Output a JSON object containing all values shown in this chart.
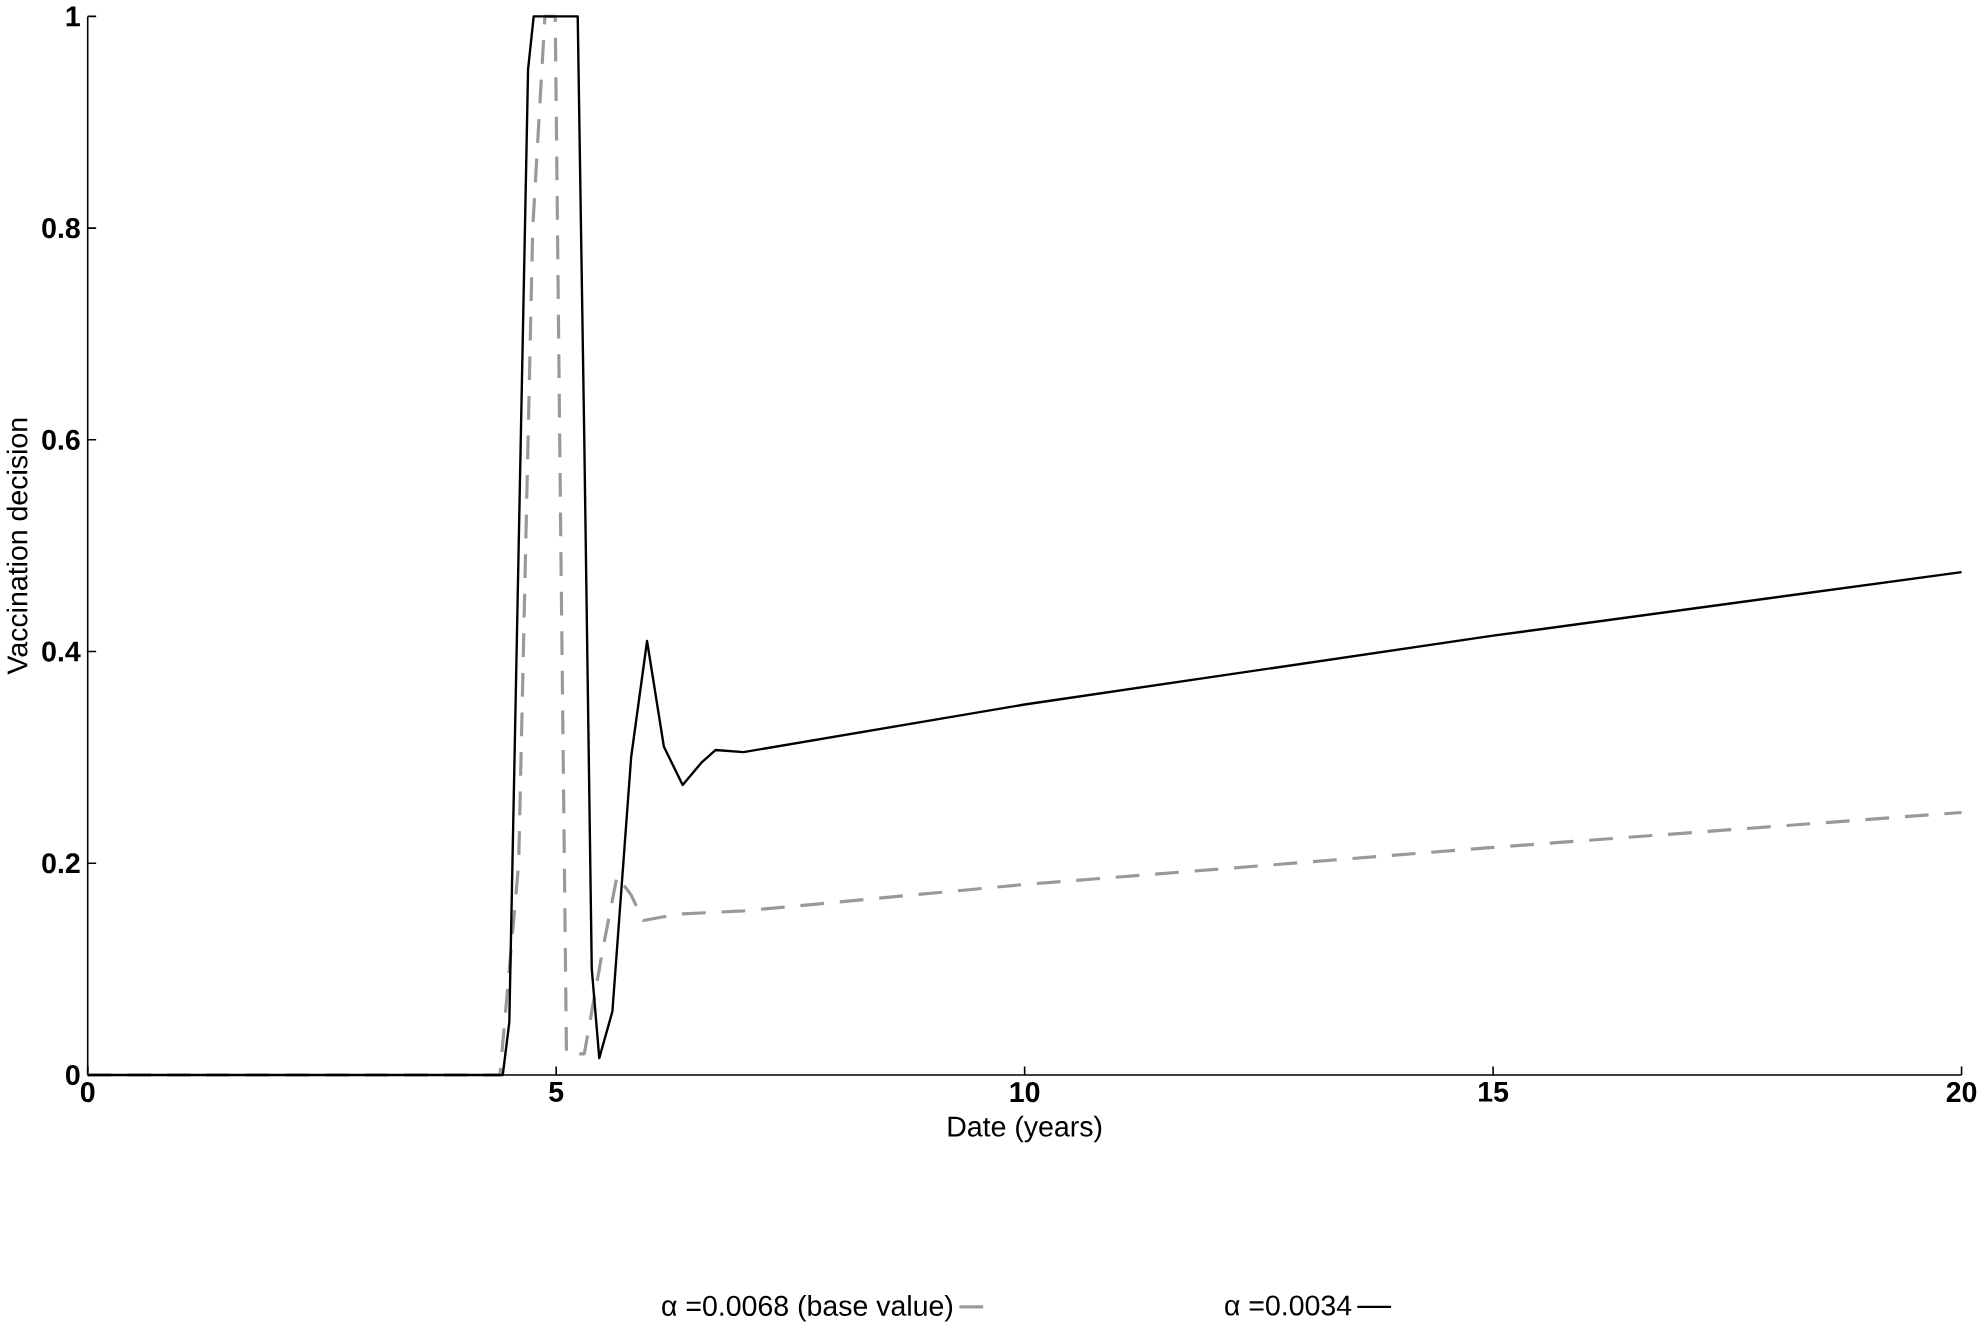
{
  "chart_data": {
    "type": "line",
    "xlabel": "Date (years)",
    "ylabel": "Vaccination decision",
    "xlim": [
      0,
      20
    ],
    "ylim": [
      0,
      1
    ],
    "xticks": [
      0,
      5,
      10,
      15,
      20
    ],
    "yticks": [
      0,
      0.2,
      0.4,
      0.6,
      0.8,
      1
    ],
    "grid": false,
    "legend": "bottom",
    "marker": "none",
    "series": [
      {
        "name": "α =0.0068 (base value)",
        "color": "#999999",
        "line_style": "dashed",
        "x": [
          0,
          4.4,
          4.6,
          4.75,
          4.88,
          4.99,
          5.05,
          5.11,
          5.3,
          5.5,
          5.65,
          5.8,
          5.93,
          6.3,
          7,
          10,
          15,
          20
        ],
        "values": [
          0,
          0,
          0.2,
          0.8,
          1,
          1,
          0.5,
          0.02,
          0.02,
          0.12,
          0.188,
          0.17,
          0.146,
          0.152,
          0.155,
          0.18,
          0.215,
          0.248
        ]
      },
      {
        "name": "α =0.0034",
        "color": "#000000",
        "line_style": "solid",
        "x": [
          0,
          4.43,
          4.5,
          4.6,
          4.7,
          4.76,
          5.23,
          5.3,
          5.38,
          5.46,
          5.6,
          5.8,
          5.97,
          6.15,
          6.35,
          6.55,
          6.7,
          7,
          10,
          15,
          20
        ],
        "values": [
          0,
          0,
          0.05,
          0.5,
          0.95,
          1,
          1,
          0.6,
          0.1,
          0.016,
          0.06,
          0.3,
          0.41,
          0.31,
          0.274,
          0.295,
          0.307,
          0.305,
          0.35,
          0.415,
          0.475
        ]
      }
    ]
  }
}
